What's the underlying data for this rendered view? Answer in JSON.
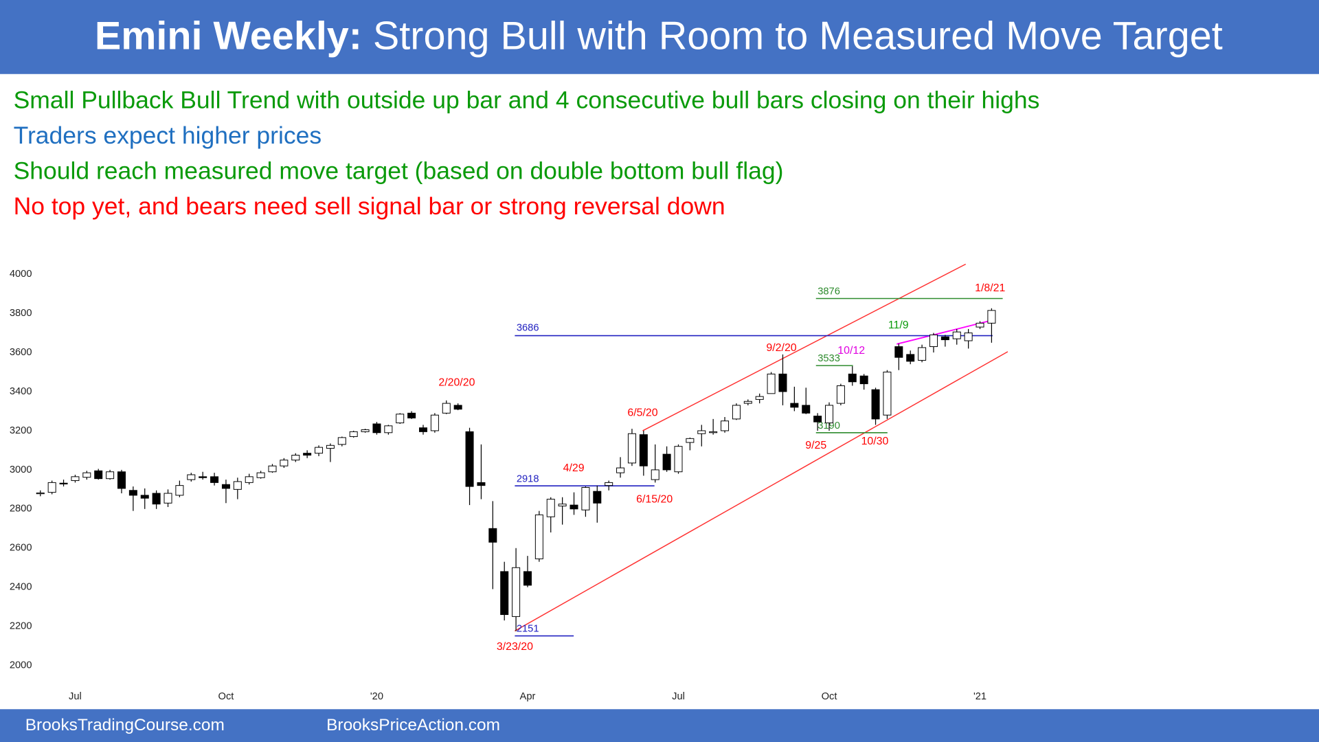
{
  "header": {
    "title_bold": "Emini Weekly:",
    "title": "Strong Bull with Room to Measured Move Target"
  },
  "bullets": [
    {
      "text": "Small Pullback Bull Trend with outside up bar and 4 consecutive bull bars closing on their highs",
      "color": "#0a9a0a"
    },
    {
      "text": "Traders expect higher prices",
      "color": "#1f6fc0"
    },
    {
      "text": "Should reach measured move target (based on double bottom bull flag)",
      "color": "#0a9a0a"
    },
    {
      "text": "No top yet, and bears need sell signal bar or strong reversal down",
      "color": "#ff0000"
    }
  ],
  "chart_data": {
    "type": "candlestick",
    "categories": [
      null,
      null,
      null,
      "Jul",
      null,
      null,
      null,
      null,
      null,
      null,
      null,
      null,
      null,
      null,
      null,
      null,
      "Oct",
      null,
      null,
      null,
      null,
      null,
      null,
      null,
      null,
      null,
      null,
      null,
      null,
      "'20",
      null,
      null,
      null,
      null,
      null,
      null,
      null,
      null,
      null,
      null,
      null,
      null,
      "Apr",
      null,
      null,
      null,
      null,
      null,
      null,
      null,
      null,
      null,
      null,
      null,
      null,
      "Jul",
      null,
      null,
      null,
      null,
      null,
      null,
      null,
      null,
      null,
      null,
      null,
      null,
      "Oct",
      null,
      null,
      null,
      null,
      null,
      null,
      null,
      null,
      null,
      null,
      null,
      null,
      "'21",
      null
    ],
    "open": [
      2880,
      2885,
      2932,
      2945,
      2962,
      2995,
      2955,
      2990,
      2895,
      2870,
      2880,
      2830,
      2870,
      2950,
      2965,
      2965,
      2925,
      2900,
      2935,
      2960,
      2990,
      3020,
      3050,
      3085,
      3085,
      3110,
      3130,
      3170,
      3195,
      3235,
      3190,
      3240,
      3290,
      3215,
      3200,
      3290,
      3330,
      3195,
      2935,
      2700,
      2480,
      2250,
      2480,
      2545,
      2760,
      2815,
      2820,
      2795,
      2890,
      2920,
      2985,
      3035,
      3180,
      2950,
      3080,
      2990,
      3140,
      3185,
      3190,
      3200,
      3260,
      3340,
      3360,
      3390,
      3490,
      3340,
      3330,
      3275,
      3240,
      3340,
      3490,
      3480,
      3410,
      3280,
      3630,
      3590,
      3560,
      3630,
      3680,
      3670,
      3660,
      3730,
      3750
    ],
    "high": [
      2895,
      2945,
      2950,
      2975,
      2995,
      3005,
      3000,
      3000,
      2915,
      2905,
      2895,
      2900,
      2945,
      2985,
      2990,
      2985,
      2950,
      2960,
      2980,
      2995,
      3030,
      3060,
      3085,
      3100,
      3125,
      3135,
      3170,
      3200,
      3210,
      3245,
      3230,
      3290,
      3300,
      3230,
      3290,
      3355,
      3340,
      3215,
      3130,
      2840,
      2530,
      2600,
      2560,
      2790,
      2860,
      2860,
      2885,
      2915,
      2920,
      2945,
      3065,
      3210,
      3200,
      3130,
      3120,
      3130,
      3165,
      3230,
      3260,
      3270,
      3340,
      3360,
      3390,
      3500,
      3590,
      3425,
      3420,
      3290,
      3345,
      3440,
      3530,
      3490,
      3420,
      3510,
      3645,
      3610,
      3640,
      3700,
      3690,
      3720,
      3720,
      3760,
      3826
    ],
    "low": [
      2865,
      2875,
      2915,
      2935,
      2950,
      2950,
      2950,
      2880,
      2790,
      2800,
      2800,
      2810,
      2860,
      2940,
      2950,
      2920,
      2830,
      2850,
      2925,
      2955,
      2985,
      3010,
      3040,
      3060,
      3070,
      3040,
      3120,
      3165,
      3190,
      3180,
      3180,
      3235,
      3260,
      3180,
      3190,
      3285,
      3305,
      2820,
      2850,
      2390,
      2230,
      2175,
      2400,
      2530,
      2680,
      2720,
      2770,
      2760,
      2730,
      2895,
      2960,
      3020,
      2970,
      2935,
      2990,
      2980,
      3100,
      3120,
      3180,
      3190,
      3255,
      3330,
      3340,
      3390,
      3330,
      3300,
      3285,
      3200,
      3200,
      3330,
      3430,
      3410,
      3230,
      3260,
      3510,
      3540,
      3550,
      3600,
      3630,
      3640,
      3620,
      3720,
      3650
    ],
    "close": [
      2882,
      2935,
      2928,
      2965,
      2985,
      2955,
      2990,
      2905,
      2870,
      2855,
      2825,
      2880,
      2920,
      2975,
      2960,
      2935,
      2905,
      2940,
      2965,
      2985,
      3020,
      3050,
      3075,
      3075,
      3115,
      3125,
      3165,
      3195,
      3205,
      3190,
      3225,
      3285,
      3265,
      3195,
      3280,
      3340,
      3310,
      2915,
      2920,
      2630,
      2260,
      2500,
      2410,
      2770,
      2850,
      2825,
      2800,
      2910,
      2830,
      2935,
      3010,
      3185,
      3020,
      3000,
      3000,
      3120,
      3160,
      3200,
      3195,
      3250,
      3330,
      3350,
      3375,
      3490,
      3400,
      3320,
      3290,
      3245,
      3330,
      3430,
      3450,
      3440,
      3260,
      3500,
      3575,
      3555,
      3625,
      3690,
      3665,
      3705,
      3700,
      3750,
      3815
    ],
    "ylim": [
      2000,
      4000
    ],
    "yticks": [
      2000,
      2200,
      2400,
      2600,
      2800,
      3000,
      3200,
      3400,
      3600,
      3800,
      4000
    ],
    "levels": [
      {
        "value": 3876,
        "color": "#2e8b2e"
      },
      {
        "value": 3686,
        "color": "#2020c0"
      },
      {
        "value": 3533,
        "color": "#2e8b2e"
      },
      {
        "value": 3190,
        "color": "#2e8b2e"
      },
      {
        "value": 2918,
        "color": "#2020c0"
      },
      {
        "value": 2151,
        "color": "#2020c0"
      }
    ],
    "annotations": [
      {
        "text": "2/20/20",
        "color": "#ff0000"
      },
      {
        "text": "6/5/20",
        "color": "#ff0000"
      },
      {
        "text": "4/29",
        "color": "#ff0000"
      },
      {
        "text": "6/15/20",
        "color": "#ff0000"
      },
      {
        "text": "9/2/20",
        "color": "#ff0000"
      },
      {
        "text": "10/12",
        "color": "#e000e0"
      },
      {
        "text": "11/9",
        "color": "#0a9a0a"
      },
      {
        "text": "1/8/21",
        "color": "#ff0000"
      },
      {
        "text": "9/25",
        "color": "#ff0000"
      },
      {
        "text": "10/30",
        "color": "#ff0000"
      },
      {
        "text": "3/23/20",
        "color": "#ff0000"
      }
    ]
  },
  "footer": {
    "left": "BrooksTradingCourse.com",
    "right": "BrooksPriceAction.com"
  }
}
